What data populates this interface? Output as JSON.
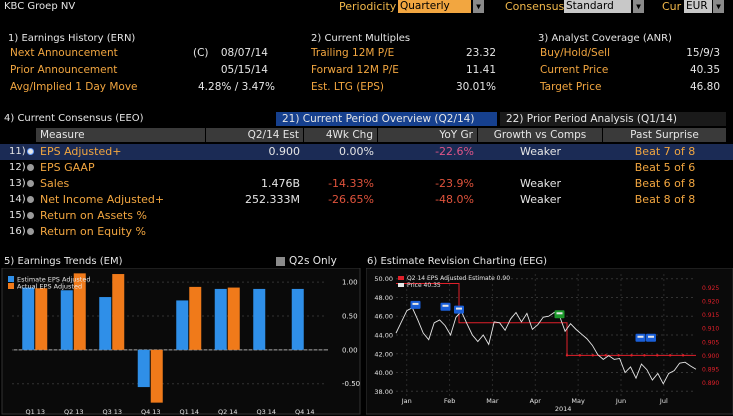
{
  "header": {
    "title": "KBC Groep NV",
    "periodicity_label": "Periodicity",
    "periodicity_value": "Quarterly",
    "consensus_label": "Consensus",
    "consensus_value": "Standard",
    "cur_label": "Cur",
    "cur_value": "EUR"
  },
  "earnings_history": {
    "title": "1) Earnings History (ERN)",
    "rows": [
      {
        "label": "Next Announcement",
        "flag": "(C)",
        "value": "08/07/14"
      },
      {
        "label": "Prior Announcement",
        "flag": "",
        "value": "05/15/14"
      },
      {
        "label": "Avg/Implied 1 Day Move",
        "flag": "",
        "value": "4.28% / 3.47%"
      }
    ]
  },
  "current_multiples": {
    "title": "2) Current Multiples",
    "rows": [
      {
        "label": "Trailing 12M P/E",
        "value": "23.32"
      },
      {
        "label": "Forward 12M P/E",
        "value": "11.41"
      },
      {
        "label": "Est. LTG (EPS)",
        "value": "30.01%"
      }
    ]
  },
  "analyst_coverage": {
    "title": "3) Analyst Coverage (ANR)",
    "rows": [
      {
        "label": "Buy/Hold/Sell",
        "value": "15/9/3"
      },
      {
        "label": "Current Price",
        "value": "40.35"
      },
      {
        "label": "Target Price",
        "value": "46.80"
      }
    ]
  },
  "consensus": {
    "title": "4) Current Consensus (EEO)",
    "tab_active": "21) Current Period Overview (Q2/14)",
    "tab_other": "22) Prior Period Analysis (Q1/14)",
    "columns": [
      "Measure",
      "Q2/14 Est",
      "4Wk Chg",
      "YoY Gr",
      "Growth vs Comps",
      "Past Surprise"
    ],
    "rows": [
      {
        "num": "11)",
        "measure": "EPS Adjusted+",
        "est": "0.900",
        "chg": "0.00%",
        "yoy": "-22.6%",
        "growth": "Weaker",
        "surprise": "Beat 7 of 8"
      },
      {
        "num": "12)",
        "measure": "EPS GAAP",
        "est": "",
        "chg": "",
        "yoy": "",
        "growth": "",
        "surprise": "Beat 5 of 6"
      },
      {
        "num": "13)",
        "measure": "Sales",
        "est": "1.476B",
        "chg": "-14.33%",
        "yoy": "-23.9%",
        "growth": "Weaker",
        "surprise": "Beat 6 of 8"
      },
      {
        "num": "14)",
        "measure": "Net Income Adjusted+",
        "est": "252.333M",
        "chg": "-26.65%",
        "yoy": "-48.0%",
        "growth": "Weaker",
        "surprise": "Beat 8 of 8"
      },
      {
        "num": "15)",
        "measure": "Return on Assets %",
        "est": "",
        "chg": "",
        "yoy": "",
        "growth": "",
        "surprise": ""
      },
      {
        "num": "16)",
        "measure": "Return on Equity %",
        "est": "",
        "chg": "",
        "yoy": "",
        "growth": "",
        "surprise": ""
      }
    ]
  },
  "earnings_trends": {
    "title": "5) Earnings Trends (EM)",
    "q2s_only": "Q2s Only",
    "legend": [
      "Estimate EPS Adjusted",
      "Actual EPS Adjusted"
    ],
    "colors": {
      "estimate": "#2f8fe8",
      "actual": "#f07a1a"
    },
    "y_ticks": [
      "1.00",
      "0.50",
      "0.00",
      "-0.50"
    ],
    "x_labels": [
      "Q1 13",
      "Q2 13",
      "Q3 13",
      "Q4 13",
      "Q1 14",
      "Q2 14",
      "Q3 14",
      "Q4 14"
    ]
  },
  "chart_data": [
    {
      "type": "bar",
      "categories": [
        "Q1 13",
        "Q2 13",
        "Q3 13",
        "Q4 13",
        "Q1 14",
        "Q2 14",
        "Q3 14",
        "Q4 14"
      ],
      "series": [
        {
          "name": "Estimate EPS Adjusted",
          "values": [
            0.92,
            0.88,
            0.78,
            -0.55,
            0.73,
            0.9,
            0.9,
            0.9
          ]
        },
        {
          "name": "Actual EPS Adjusted",
          "values": [
            0.91,
            1.13,
            1.12,
            -0.78,
            0.93,
            0.92,
            null,
            null
          ]
        }
      ],
      "ylim": [
        -0.8,
        1.15
      ]
    },
    {
      "type": "line",
      "title": "6) Estimate Revision Charting (EEG)",
      "legend": [
        "Q2 14 EPS Adjusted Estimate 0.90",
        "Price 40.35"
      ],
      "x_labels": [
        "Jan",
        "Feb",
        "Mar",
        "Apr",
        "May",
        "Jun",
        "Jul"
      ],
      "x_year": "2014",
      "left_ticks": [
        "50.00",
        "48.00",
        "46.00",
        "44.00",
        "42.00",
        "40.00",
        "38.00"
      ],
      "right_ticks": [
        "0.925",
        "0.920",
        "0.915",
        "0.910",
        "0.905",
        "0.900",
        "0.895",
        "0.890"
      ],
      "price_ylim": [
        37.5,
        50.5
      ],
      "estimate_ylim": [
        0.885,
        0.93
      ],
      "price_series": [
        44.2,
        45.4,
        46.6,
        46.9,
        45.6,
        44.2,
        43.5,
        45.3,
        45.6,
        45.0,
        44.0,
        45.9,
        46.5,
        45.2,
        44.0,
        43.3,
        44.0,
        43.0,
        45.4,
        45.3,
        44.5,
        45.7,
        46.4,
        45.4,
        46.3,
        44.6,
        45.1,
        45.9,
        46.0,
        46.4,
        46.0,
        44.4,
        45.2,
        44.6,
        44.1,
        43.6,
        42.9,
        41.9,
        41.4,
        41.8,
        41.4,
        41.5,
        40.0,
        40.6,
        39.4,
        40.9,
        40.3,
        39.2,
        39.9,
        38.8,
        39.9,
        40.2,
        41.0,
        41.1,
        40.7,
        40.35
      ],
      "estimate_steps": [
        [
          0,
          0.9265
        ],
        [
          0.21,
          0.9265
        ],
        [
          0.21,
          0.912
        ],
        [
          0.57,
          0.912
        ],
        [
          0.57,
          0.9
        ],
        [
          1,
          0.9
        ]
      ],
      "colors": {
        "price": "#e6e6e6",
        "estimate": "#e0202a",
        "marker_up": "#1a5fd8",
        "marker_green": "#1d9a2c"
      }
    }
  ]
}
